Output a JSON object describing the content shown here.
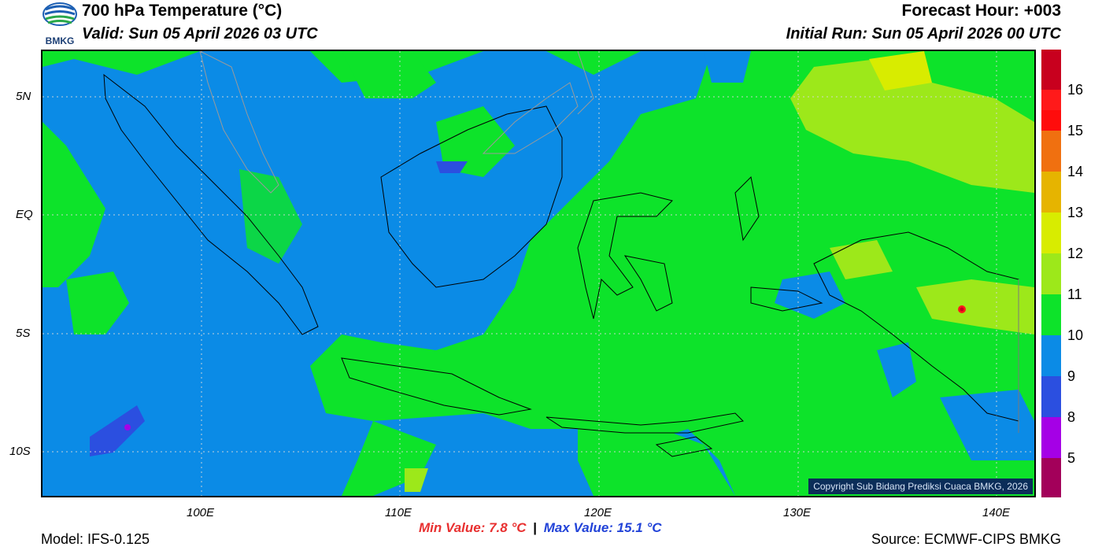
{
  "header": {
    "title": "700 hPa Temperature (°C)",
    "valid": "Valid: Sun 05 April 2026 03 UTC",
    "forecast_hour": "Forecast Hour: +003",
    "initial_run": "Initial Run: Sun 05 April 2026 00 UTC",
    "logo_text": "BMKG"
  },
  "axes": {
    "lat_labels": [
      "5N",
      "EQ",
      "5S",
      "10S"
    ],
    "lon_labels": [
      "100E",
      "110E",
      "120E",
      "130E",
      "140E"
    ]
  },
  "colorbar": {
    "labels": [
      "16",
      "15",
      "14",
      "13",
      "12",
      "11",
      "10",
      "9",
      "8",
      "5"
    ],
    "colors": [
      "#c8001e",
      "#ff1a1a",
      "#ff0c0c",
      "#f07010",
      "#e6b400",
      "#d8ec00",
      "#9de81a",
      "#0de32a",
      "#0b8be6",
      "#2b4fe0",
      "#a500e6",
      "#a3005a"
    ]
  },
  "map": {
    "copyright": "Copyright Sub Bidang Prediksi Cuaca BMKG, 2026",
    "colors": {
      "warm_green": "#0de32a",
      "cool_blue": "#0b8be6",
      "deep_blue": "#2b4fe0",
      "yellow_green": "#9de81a",
      "yellow": "#d8ec00"
    }
  },
  "footer": {
    "model": "Model: IFS-0.125",
    "min_value": "Min Value: 7.8 °C",
    "separator": "|",
    "max_value": "Max Value: 15.1 °C",
    "source": "Source: ECMWF-CIPS BMKG"
  }
}
